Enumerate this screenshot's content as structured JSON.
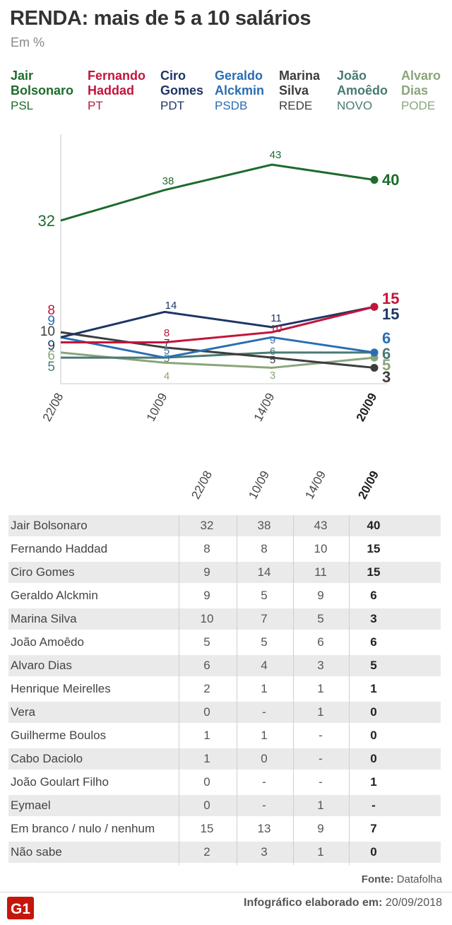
{
  "header": {
    "title": "RENDA: mais de 5 a 10 salários",
    "subtitle": "Em %"
  },
  "legend": [
    {
      "line1": "Jair",
      "line2": "Bolsonaro",
      "party": "PSL",
      "color": "#1e6b2d"
    },
    {
      "line1": "Fernando",
      "line2": "Haddad",
      "party": "PT",
      "color": "#c2153b"
    },
    {
      "line1": "Ciro",
      "line2": "Gomes",
      "party": "PDT",
      "color": "#1e3566"
    },
    {
      "line1": "Geraldo",
      "line2": "Alckmin",
      "party": "PSDB",
      "color": "#2a6db3"
    },
    {
      "line1": "Marina",
      "line2": "Silva",
      "party": "REDE",
      "color": "#3d3d3d"
    },
    {
      "line1": "João",
      "line2": "Amoêdo",
      "party": "NOVO",
      "color": "#4a7a74"
    },
    {
      "line1": "Alvaro",
      "line2": "Dias",
      "party": "PODE",
      "color": "#8aa57a"
    }
  ],
  "chart_data": {
    "type": "line",
    "title": "RENDA: mais de 5 a 10 salários",
    "subtitle": "Em %",
    "x": [
      "22/08",
      "10/09",
      "14/09",
      "20/09"
    ],
    "series": [
      {
        "name": "Jair Bolsonaro",
        "color": "#1e6b2d",
        "values": [
          32,
          38,
          43,
          40
        ]
      },
      {
        "name": "Fernando Haddad",
        "color": "#c2153b",
        "values": [
          8,
          8,
          10,
          15
        ]
      },
      {
        "name": "Ciro Gomes",
        "color": "#1e3566",
        "values": [
          9,
          14,
          11,
          15
        ]
      },
      {
        "name": "Geraldo Alckmin",
        "color": "#2a6db3",
        "values": [
          9,
          5,
          9,
          6
        ]
      },
      {
        "name": "Marina Silva",
        "color": "#3d3d3d",
        "values": [
          10,
          7,
          5,
          3
        ]
      },
      {
        "name": "João Amoêdo",
        "color": "#4a7a74",
        "values": [
          5,
          5,
          6,
          6
        ]
      },
      {
        "name": "Alvaro Dias",
        "color": "#8aa57a",
        "values": [
          6,
          4,
          3,
          5
        ]
      }
    ],
    "ylim": [
      0,
      43
    ],
    "grid": false
  },
  "table": {
    "columns": [
      "22/08",
      "10/09",
      "14/09",
      "20/09"
    ],
    "rows": [
      {
        "label": "Jair Bolsonaro",
        "values": [
          "32",
          "38",
          "43",
          "40"
        ]
      },
      {
        "label": "Fernando Haddad",
        "values": [
          "8",
          "8",
          "10",
          "15"
        ]
      },
      {
        "label": "Ciro Gomes",
        "values": [
          "9",
          "14",
          "11",
          "15"
        ]
      },
      {
        "label": "Geraldo Alckmin",
        "values": [
          "9",
          "5",
          "9",
          "6"
        ]
      },
      {
        "label": "Marina Silva",
        "values": [
          "10",
          "7",
          "5",
          "3"
        ]
      },
      {
        "label": "João Amoêdo",
        "values": [
          "5",
          "5",
          "6",
          "6"
        ]
      },
      {
        "label": "Alvaro Dias",
        "values": [
          "6",
          "4",
          "3",
          "5"
        ]
      },
      {
        "label": "Henrique Meirelles",
        "values": [
          "2",
          "1",
          "1",
          "1"
        ]
      },
      {
        "label": "Vera",
        "values": [
          "0",
          "-",
          "1",
          "0"
        ]
      },
      {
        "label": "Guilherme Boulos",
        "values": [
          "1",
          "1",
          "-",
          "0"
        ]
      },
      {
        "label": "Cabo Daciolo",
        "values": [
          "1",
          "0",
          "-",
          "0"
        ]
      },
      {
        "label": "João Goulart Filho",
        "values": [
          "0",
          "-",
          "-",
          "1"
        ]
      },
      {
        "label": "Eymael",
        "values": [
          "0",
          "-",
          "1",
          "-"
        ]
      },
      {
        "label": "Em branco / nulo / nenhum",
        "values": [
          "15",
          "13",
          "9",
          "7"
        ]
      },
      {
        "label": "Não sabe",
        "values": [
          "2",
          "3",
          "1",
          "0"
        ]
      }
    ]
  },
  "footer": {
    "source_label": "Fonte:",
    "source_value": "Datafolha",
    "logo_text": "G1",
    "credit_label": "Infográfico elaborado em:",
    "credit_value": "20/09/2018"
  }
}
